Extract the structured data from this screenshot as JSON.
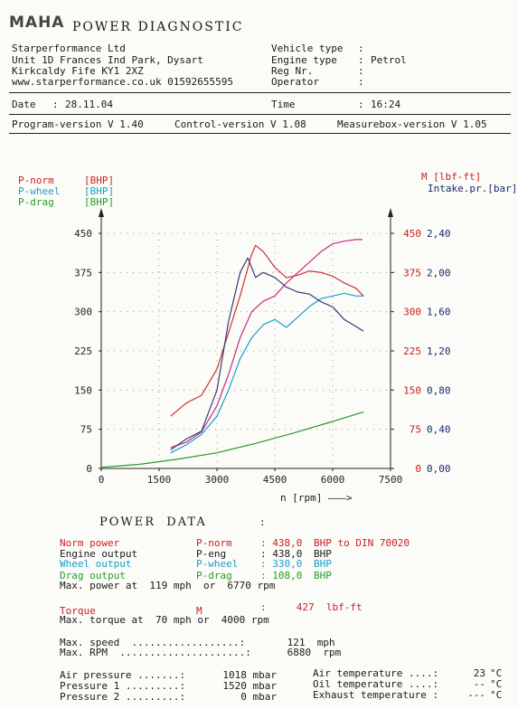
{
  "header": {
    "logo": "MAHA",
    "title": "POWER DIAGNOSTIC",
    "company": [
      "Starperformance Ltd",
      "Unit 1D Frances Ind Park, Dysart",
      "Kirkcaldy Fife KY1 2XZ",
      "www.starperformance.co.uk 01592655595"
    ],
    "vehicle_labels": [
      "Vehicle type",
      "Engine type",
      "Reg Nr.",
      "Operator"
    ],
    "vehicle_values": [
      "",
      "Petrol",
      "",
      ""
    ],
    "date_label": "Date",
    "date_value": "28.11.04",
    "time_label": "Time",
    "time_value": "16:24",
    "program_version": "Program-version V 1.40",
    "control_version": "Control-version V 1.08",
    "measurebox_version": "Measurebox-version V 1.05"
  },
  "chart_data": {
    "type": "line",
    "xlabel": "n [rpm] ———>",
    "x_ticks": [
      "0",
      "1500",
      "3000",
      "4500",
      "6000",
      "7500"
    ],
    "xlim": [
      0,
      7500
    ],
    "left_axis_labels": [
      {
        "text": "P-norm",
        "unit": "[BHP]",
        "color": "#cc2020"
      },
      {
        "text": "P-wheel",
        "unit": "[BHP]",
        "color": "#1aa0c8"
      },
      {
        "text": "P-drag",
        "unit": "[BHP]",
        "color": "#2a9a2a"
      }
    ],
    "left_ticks": [
      "0",
      "75",
      "150",
      "225",
      "300",
      "375",
      "450"
    ],
    "ylim": [
      0,
      450
    ],
    "right_label_torque": "M [lbf-ft]",
    "right_label_intake": "Intake.pr.[bar]",
    "torque_ticks": [
      "0",
      "75",
      "150",
      "225",
      "300",
      "375",
      "450"
    ],
    "intake_ticks": [
      "0,00",
      "0,40",
      "0,80",
      "1,20",
      "1,60",
      "2,00",
      "2,40"
    ],
    "grid": true,
    "series": [
      {
        "name": "P-norm",
        "color": "#cc2a80",
        "x": [
          1800,
          2200,
          2600,
          3000,
          3300,
          3600,
          3900,
          4200,
          4500,
          4800,
          5100,
          5400,
          5700,
          6000,
          6300,
          6600,
          6770
        ],
        "y": [
          40,
          50,
          70,
          120,
          180,
          250,
          300,
          320,
          330,
          355,
          375,
          395,
          415,
          430,
          435,
          438,
          438
        ]
      },
      {
        "name": "P-wheel",
        "color": "#1aa0c8",
        "x": [
          1800,
          2200,
          2600,
          3000,
          3300,
          3600,
          3900,
          4200,
          4500,
          4800,
          5100,
          5400,
          5700,
          6000,
          6300,
          6600,
          6800
        ],
        "y": [
          30,
          45,
          65,
          100,
          150,
          210,
          250,
          275,
          285,
          270,
          290,
          310,
          325,
          330,
          335,
          330,
          330
        ]
      },
      {
        "name": "P-drag",
        "color": "#2a9a2a",
        "x": [
          0,
          1000,
          2000,
          3000,
          4000,
          5000,
          6000,
          6800
        ],
        "y": [
          2,
          8,
          18,
          30,
          48,
          68,
          90,
          108
        ]
      },
      {
        "name": "M",
        "color": "#d03030",
        "x": [
          1800,
          2200,
          2600,
          3000,
          3300,
          3600,
          3900,
          4000,
          4200,
          4500,
          4800,
          5100,
          5400,
          5700,
          6000,
          6300,
          6600,
          6800
        ],
        "y": [
          100,
          125,
          140,
          190,
          260,
          330,
          410,
          427,
          415,
          385,
          365,
          370,
          378,
          375,
          368,
          355,
          345,
          330
        ]
      },
      {
        "name": "Intake",
        "color": "#3a3a7a",
        "x": [
          1800,
          2200,
          2600,
          3000,
          3300,
          3600,
          3800,
          4000,
          4200,
          4500,
          4800,
          5100,
          5400,
          5700,
          6000,
          6300,
          6600,
          6800
        ],
        "y": [
          0.19,
          0.3,
          0.38,
          0.8,
          1.5,
          2.0,
          2.15,
          1.95,
          2.0,
          1.95,
          1.85,
          1.8,
          1.78,
          1.7,
          1.65,
          1.52,
          1.45,
          1.4
        ]
      }
    ]
  },
  "power_data": {
    "title": "POWER  DATA",
    "colon": ":",
    "rows": [
      {
        "label": "Norm power",
        "key": "P-norm",
        "value": ": 438,0",
        "unit": "BHP to DIN 70020",
        "color": "#cc2020"
      },
      {
        "label": "Engine output",
        "key": "P-eng",
        "value": ": 438,0",
        "unit": "BHP",
        "color": "#1a1a1a"
      },
      {
        "label": "Wheel output",
        "key": "P-wheel",
        "value": ": 330,0",
        "unit": "BHP",
        "color": "#1aa0c8"
      },
      {
        "label": "Drag output",
        "key": "P-drag",
        "value": ": 108,0",
        "unit": "BHP",
        "color": "#2a9a2a"
      }
    ],
    "max_power": "Max. power at  119 mph  or  6770 rpm",
    "torque_label": "Torque",
    "torque_key": "M",
    "torque_value": ":     427  lbf-ft",
    "max_torque": "Max. torque at  70 mph or  4000 rpm",
    "max_speed": "Max. speed  ..................:       121  mph",
    "max_rpm": "Max. RPM  .....................:      6880  rpm"
  },
  "ambient": {
    "left": [
      {
        "label": "Air pressure .......:",
        "value": "1018 mbar"
      },
      {
        "label": "Pressure 1 .........:",
        "value": "1520 mbar"
      },
      {
        "label": "Pressure 2 .........:",
        "value": "0 mbar"
      }
    ],
    "right": [
      {
        "label": "Air temperature ....:",
        "value": "23",
        "unit": "°C"
      },
      {
        "label": "Oil temperature ....:",
        "value": "--",
        "unit": "°C"
      },
      {
        "label": "Exhaust temperature :",
        "value": "---",
        "unit": "°C"
      }
    ]
  }
}
